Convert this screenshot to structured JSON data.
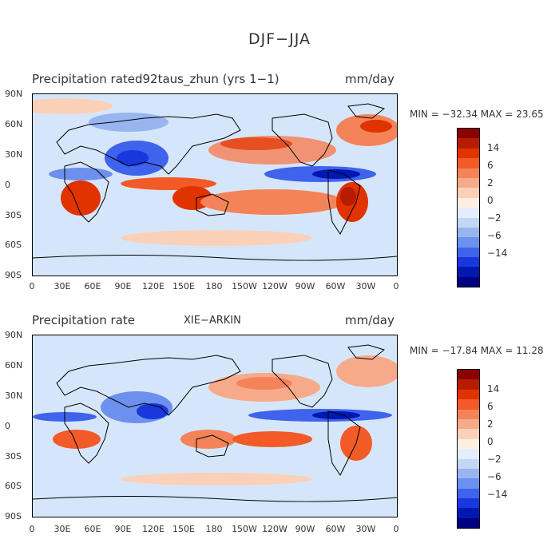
{
  "figure_title": "DJF−JJA",
  "panels": [
    {
      "title_left": "Precipitation rated92taus_zhun (yrs 1−1)",
      "title_center": "",
      "units": "mm/day",
      "min_max": "MIN = −32.34  MAX =  23.65"
    },
    {
      "title_left": "Precipitation rate",
      "title_center": "XIE−ARKIN",
      "units": "mm/day",
      "min_max": "MIN = −17.84  MAX =  11.28"
    }
  ],
  "lat_labels": [
    "90N",
    "60N",
    "30N",
    "0",
    "30S",
    "60S",
    "90S"
  ],
  "lon_labels": [
    "0",
    "30E",
    "60E",
    "90E",
    "120E",
    "150E",
    "180",
    "150W",
    "120W",
    "90W",
    "60W",
    "30W",
    "0"
  ],
  "legend_labels": [
    "14",
    "6",
    "2",
    "0",
    "−2",
    "−6",
    "−14"
  ],
  "legend_colors": [
    "#8b0000",
    "#b81c00",
    "#e03300",
    "#f25a28",
    "#f4835a",
    "#f7aa8a",
    "#fbd0b8",
    "#fdeee2",
    "#e4eefa",
    "#c2d6f5",
    "#98b5f0",
    "#6d90ee",
    "#3f63ec",
    "#1838dd",
    "#0018b0",
    "#000080"
  ],
  "colors": {
    "ocean_base": "#d6e6fa",
    "coastline": "#000000"
  }
}
